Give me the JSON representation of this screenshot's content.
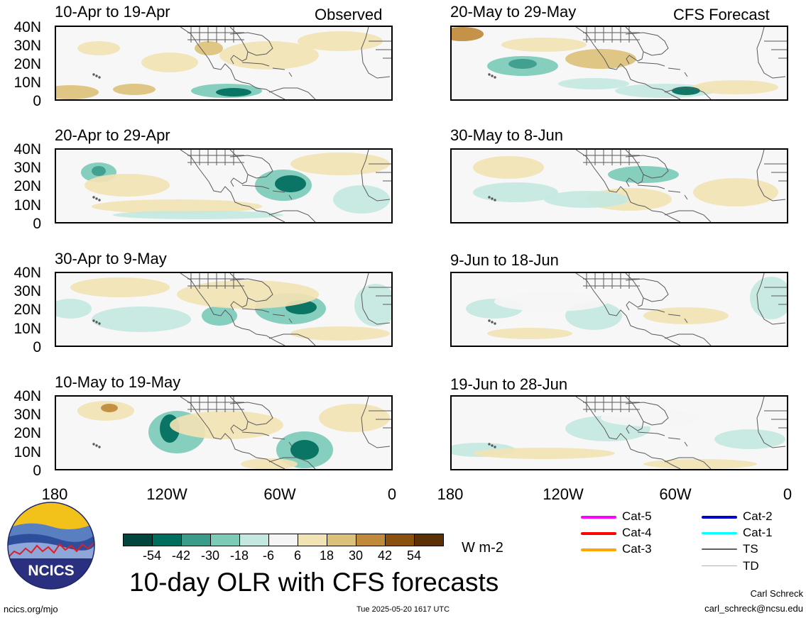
{
  "left_panels": [
    {
      "title": "10-Apr to 19-Apr",
      "tag": "Observed"
    },
    {
      "title": "20-Apr to 29-Apr",
      "tag": ""
    },
    {
      "title": "30-Apr to 9-May",
      "tag": ""
    },
    {
      "title": "10-May to 19-May",
      "tag": ""
    }
  ],
  "right_panels": [
    {
      "title": "20-May to 29-May",
      "tag": "CFS Forecast"
    },
    {
      "title": "30-May to 8-Jun",
      "tag": ""
    },
    {
      "title": "9-Jun to 18-Jun",
      "tag": ""
    },
    {
      "title": "19-Jun to 28-Jun",
      "tag": ""
    }
  ],
  "lat_labels": [
    "40N",
    "30N",
    "20N",
    "10N",
    "0"
  ],
  "lon_labels": [
    "180",
    "120W",
    "60W",
    "0"
  ],
  "colorbar": {
    "colors": [
      "#00463c",
      "#006e5c",
      "#3c9c8c",
      "#7ccab8",
      "#c4e8e0",
      "#f5f5f5",
      "#f2e3b4",
      "#dcc17a",
      "#bf8a3a",
      "#8a5010",
      "#5a3004"
    ],
    "labels": [
      "-54",
      "-42",
      "-30",
      "-18",
      "-6",
      "6",
      "18",
      "30",
      "42",
      "54"
    ],
    "units": "W m-2"
  },
  "legend": [
    {
      "label": "Cat-5",
      "color": "#ff00ff"
    },
    {
      "label": "Cat-4",
      "color": "#ff0000"
    },
    {
      "label": "Cat-3",
      "color": "#ffa500"
    },
    {
      "label": "Cat-2",
      "color": "#0000cc"
    },
    {
      "label": "Cat-1",
      "color": "#00ffff"
    },
    {
      "label": "TS",
      "color": "#606060"
    },
    {
      "label": "TD",
      "color": "#b0b0b0"
    }
  ],
  "logo_text": "NCICS",
  "main_title": "10-day OLR with CFS forecasts",
  "footer": {
    "url": "ncics.org/mjo",
    "timestamp": "Tue 2025-05-20 1617 UTC",
    "author": "Carl Schreck",
    "email": "carl_schreck@ncsu.edu"
  }
}
